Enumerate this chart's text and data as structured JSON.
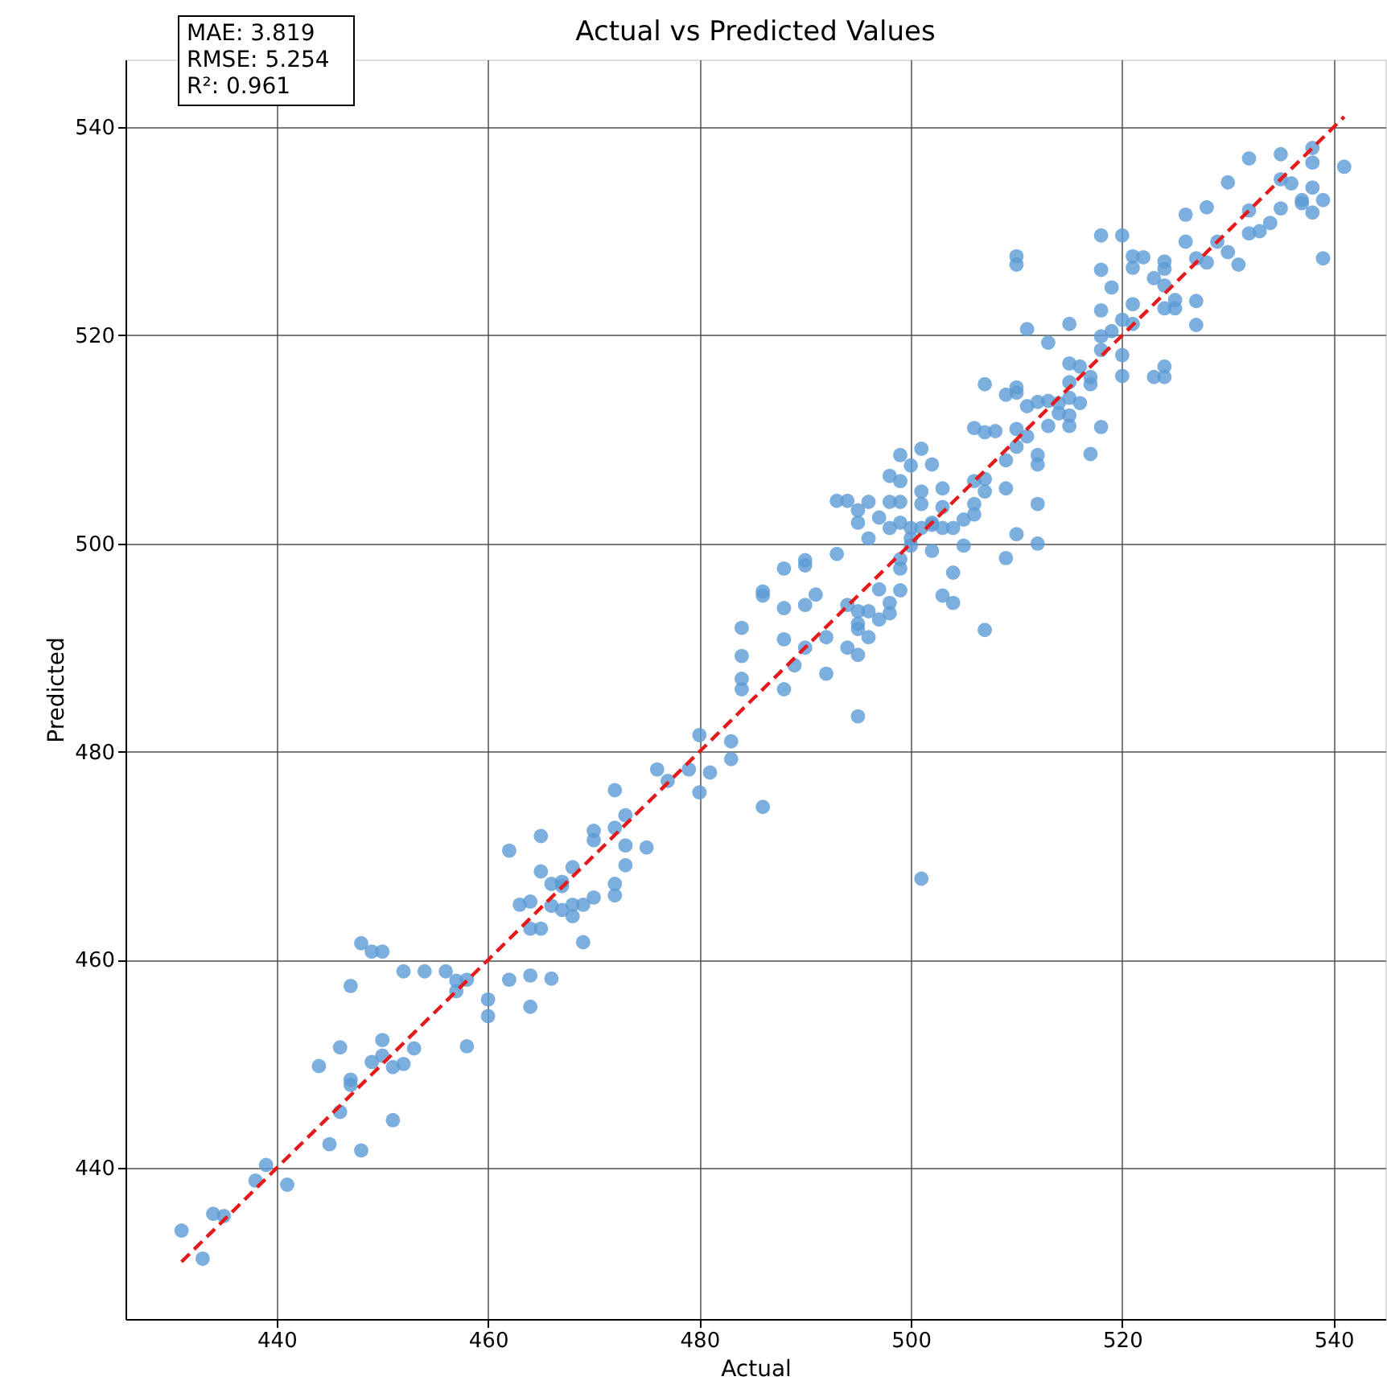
{
  "chart_data": {
    "type": "scatter",
    "title": "Actual vs Predicted Values",
    "xlabel": "Actual",
    "ylabel": "Predicted",
    "xlim": [
      425.7,
      544.9
    ],
    "ylim": [
      425.5,
      546.5
    ],
    "xticks": [
      440,
      460,
      480,
      500,
      520,
      540
    ],
    "yticks": [
      440,
      460,
      480,
      500,
      520,
      540
    ],
    "grid": true,
    "annotations": [
      "MAE: 3.819\nRMSE: 5.254\nR²: 0.961"
    ],
    "series": [
      {
        "color": "#5b9bd5",
        "marker": "circle",
        "x": [
          431,
          433,
          434,
          435,
          438,
          439,
          441,
          444,
          445,
          446,
          446,
          447,
          447,
          447,
          448,
          448,
          449,
          449,
          450,
          450,
          450,
          451,
          451,
          452,
          452,
          453,
          454,
          456,
          457,
          457,
          458,
          458,
          460,
          460,
          462,
          462,
          463,
          464,
          464,
          464,
          464,
          465,
          465,
          465,
          466,
          466,
          466,
          467,
          467,
          467,
          468,
          468,
          468,
          469,
          469,
          470,
          470,
          470,
          472,
          472,
          472,
          472,
          473,
          473,
          473,
          475,
          476,
          477,
          479,
          480,
          480,
          481,
          483,
          483,
          484,
          484,
          484,
          484,
          486,
          486,
          486,
          488,
          488,
          488,
          488,
          489,
          490,
          490,
          490,
          490,
          491,
          492,
          492,
          493,
          493,
          494,
          494,
          494,
          495,
          495,
          495,
          495,
          495,
          495,
          495,
          496,
          496,
          496,
          496,
          497,
          497,
          497,
          498,
          498,
          498,
          498,
          498,
          499,
          499,
          499,
          499,
          499,
          499,
          499,
          500,
          500,
          500,
          500,
          501,
          501,
          501,
          501,
          501,
          502,
          502,
          502,
          502,
          503,
          503,
          503,
          503,
          504,
          504,
          504,
          505,
          505,
          506,
          506,
          506,
          506,
          507,
          507,
          507,
          507,
          507,
          508,
          509,
          509,
          509,
          509,
          510,
          510,
          510,
          510,
          510,
          510,
          510,
          511,
          511,
          511,
          512,
          512,
          512,
          512,
          512,
          513,
          513,
          513,
          514,
          514,
          515,
          515,
          515,
          515,
          515,
          515,
          516,
          516,
          517,
          517,
          517,
          518,
          518,
          518,
          518,
          518,
          518,
          519,
          519,
          520,
          520,
          520,
          520,
          521,
          521,
          521,
          521,
          522,
          523,
          523,
          524,
          524,
          524,
          524,
          524,
          524,
          525,
          525,
          526,
          526,
          527,
          527,
          527,
          528,
          528,
          529,
          530,
          530,
          531,
          532,
          532,
          532,
          533,
          534,
          535,
          535,
          535,
          536,
          537,
          537,
          538,
          538,
          538,
          538,
          539,
          539,
          541
        ],
        "values": [
          434,
          431.3,
          435.6,
          435.4,
          438.8,
          440.3,
          438.4,
          449.8,
          442.3,
          445.4,
          451.6,
          448,
          448.5,
          457.5,
          461.6,
          441.7,
          460.8,
          450.2,
          460.8,
          452.3,
          450.8,
          449.7,
          444.6,
          450,
          458.9,
          451.5,
          458.9,
          458.9,
          457,
          458,
          458.1,
          451.7,
          456.2,
          454.6,
          470.5,
          458.1,
          465.3,
          465.6,
          463,
          458.5,
          455.5,
          471.9,
          468.5,
          463,
          467.3,
          458.2,
          465.2,
          467.5,
          467.1,
          464.8,
          468.9,
          465.3,
          464.2,
          461.7,
          465.3,
          472.4,
          471.5,
          466,
          476.3,
          472.7,
          467.3,
          466.2,
          473.9,
          469.1,
          471,
          470.8,
          478.3,
          477.2,
          478.3,
          481.6,
          476.1,
          478,
          481,
          479.3,
          491.9,
          489.2,
          487,
          486,
          474.7,
          495.4,
          495,
          497.6,
          493.8,
          490.8,
          486,
          488.3,
          498.4,
          497.9,
          494.1,
          490,
          495.1,
          487.5,
          491,
          499,
          504.1,
          504.1,
          494.1,
          490,
          503.2,
          502,
          493.5,
          492.3,
          491.8,
          489.3,
          483.4,
          504,
          500.5,
          493.5,
          491,
          502.5,
          495.6,
          492.7,
          506.5,
          504,
          501.5,
          494.3,
          493.3,
          508.5,
          506,
          504,
          502,
          498.5,
          497.6,
          495.5,
          507.5,
          501.5,
          500.5,
          499.8,
          509.1,
          505,
          503.8,
          501.5,
          467.8,
          507.6,
          502,
          499.3,
          501.8,
          505.3,
          503.5,
          501.5,
          495,
          497.2,
          494.3,
          501.5,
          502.3,
          499.8,
          511.1,
          506,
          503.8,
          502.8,
          515.3,
          510.7,
          506.2,
          505,
          491.7,
          510.8,
          514.3,
          508,
          505.3,
          498.6,
          515,
          514.5,
          511,
          509.3,
          527.6,
          526.8,
          500.9,
          520.6,
          513.2,
          510.3,
          513.6,
          508.5,
          507.6,
          503.8,
          500,
          519.3,
          513.7,
          511.3,
          513.5,
          512.5,
          521.1,
          517.3,
          515.5,
          514,
          512.3,
          511.3,
          517,
          513.5,
          515.3,
          516,
          508.6,
          529.6,
          526.3,
          522.4,
          519.9,
          518.6,
          511.2,
          524.6,
          520.4,
          529.6,
          521.5,
          518.1,
          516.1,
          527.6,
          526.5,
          523,
          521.1,
          527.5,
          525.5,
          516,
          527.1,
          526.4,
          524.8,
          522.6,
          517,
          516,
          523.4,
          522.6,
          531.6,
          529,
          527.4,
          523.3,
          521,
          532.3,
          527,
          529,
          534.7,
          528,
          526.8,
          537,
          532,
          529.8,
          530,
          530.8,
          537.4,
          535,
          532.2,
          534.6,
          533,
          532.7,
          538,
          536.6,
          534.2,
          531.8,
          533,
          527.4,
          536.2
        ]
      },
      {
        "type": "line",
        "color": "#e41a1c",
        "line_style": "dashed",
        "marker": "none",
        "x": [
          431,
          541
        ],
        "values": [
          431,
          541
        ]
      }
    ]
  }
}
